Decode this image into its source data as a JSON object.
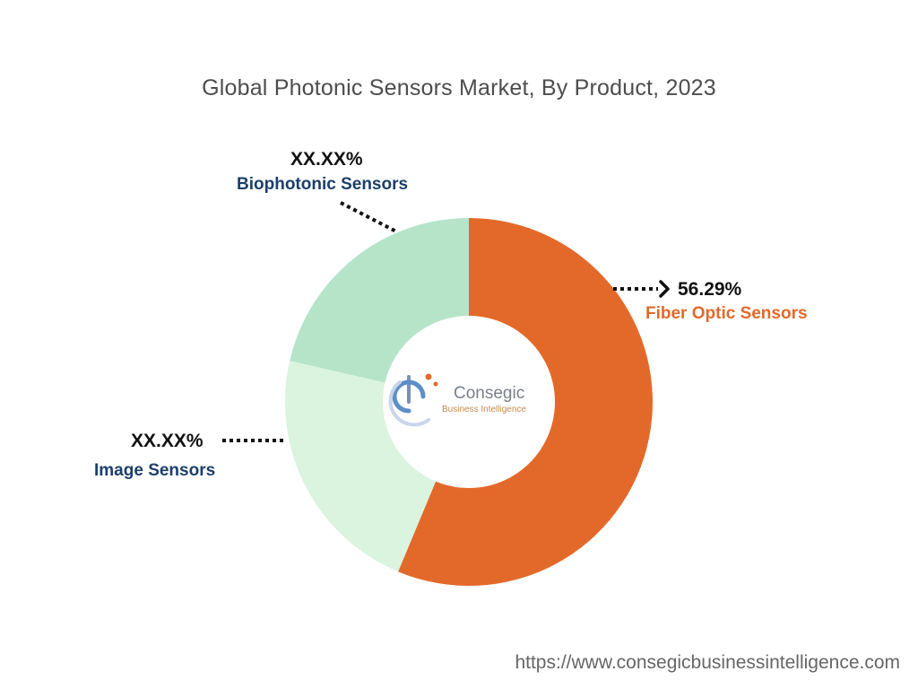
{
  "colors": {
    "fiber": "#e3692a",
    "image": "#daf4df",
    "bio": "#b5e4c9",
    "label_dark": "#1c3f6b",
    "label_orange": "#e3692a"
  },
  "logo": {
    "name": "Consegic",
    "tagline": "Business Intelligence"
  },
  "source_url": "https://www.consegicbusinessintelligence.com",
  "chart_data": {
    "type": "pie",
    "title": "Global Photonic Sensors Market, By Product, 2023",
    "donut": true,
    "start_angle_deg": 0,
    "direction": "clockwise",
    "series": [
      {
        "name": "Fiber Optic Sensors",
        "value": 56.29,
        "label": "56.29%",
        "color": "#e3692a"
      },
      {
        "name": "Image Sensors",
        "value": 22.3,
        "label": "XX.XX%",
        "color": "#daf4df"
      },
      {
        "name": "Biophotonic Sensors",
        "value": 21.41,
        "label": "XX.XX%",
        "color": "#b5e4c9"
      }
    ]
  }
}
